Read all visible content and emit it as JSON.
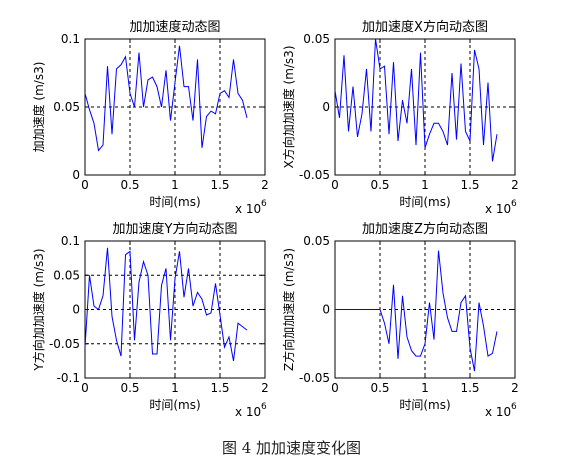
{
  "caption": "图 4  加加速度变化图",
  "chart_data": [
    {
      "type": "line",
      "title": "加加速度动态图",
      "xlabel": "时间(ms)",
      "ylabel": "加加速度 (m/s3)",
      "x_multiplier": "x 10",
      "x_multiplier_exp": "6",
      "xlim": [
        0,
        2
      ],
      "ylim": [
        0,
        0.1
      ],
      "xticks": [
        "0",
        "0.5",
        "1",
        "1.5",
        "2"
      ],
      "yticks": [
        "0",
        "0.05",
        "0.1"
      ],
      "ytick_values": [
        0,
        0.05,
        0.1
      ],
      "ref_x": [
        0.5,
        1,
        1.5
      ],
      "ref_y": [
        0.05
      ],
      "color": "#0000ff",
      "series": [
        {
          "x": [
            0.0,
            0.05,
            0.1,
            0.15,
            0.2,
            0.25,
            0.3,
            0.35,
            0.4,
            0.45,
            0.5,
            0.55,
            0.6,
            0.65,
            0.7,
            0.75,
            0.8,
            0.85,
            0.9,
            0.95,
            1.0,
            1.05,
            1.1,
            1.15,
            1.2,
            1.25,
            1.3,
            1.35,
            1.4,
            1.45,
            1.5,
            1.55,
            1.6,
            1.65,
            1.7,
            1.75,
            1.8
          ],
          "y": [
            0.06,
            0.048,
            0.038,
            0.018,
            0.022,
            0.08,
            0.03,
            0.078,
            0.081,
            0.087,
            0.06,
            0.05,
            0.09,
            0.05,
            0.07,
            0.072,
            0.065,
            0.05,
            0.077,
            0.04,
            0.068,
            0.095,
            0.065,
            0.065,
            0.04,
            0.085,
            0.02,
            0.043,
            0.047,
            0.045,
            0.06,
            0.062,
            0.057,
            0.085,
            0.06,
            0.055,
            0.042
          ]
        }
      ]
    },
    {
      "type": "line",
      "title": "加加速度X方向动态图",
      "xlabel": "时间(ms)",
      "ylabel": "X方向加加速度 (m/s3)",
      "x_multiplier": "x 10",
      "x_multiplier_exp": "6",
      "xlim": [
        0,
        2
      ],
      "ylim": [
        -0.05,
        0.05
      ],
      "xticks": [
        "0",
        "0.5",
        "1",
        "1.5",
        "2"
      ],
      "yticks": [
        "-0.05",
        "0",
        "0.05"
      ],
      "ytick_values": [
        -0.05,
        0,
        0.05
      ],
      "ref_x": [
        0.5,
        1,
        1.5
      ],
      "ref_y": [
        0
      ],
      "color": "#0000ff",
      "series": [
        {
          "x": [
            0.0,
            0.05,
            0.1,
            0.15,
            0.2,
            0.25,
            0.3,
            0.35,
            0.4,
            0.45,
            0.5,
            0.55,
            0.6,
            0.65,
            0.7,
            0.75,
            0.8,
            0.85,
            0.9,
            0.95,
            1.0,
            1.05,
            1.1,
            1.15,
            1.2,
            1.25,
            1.3,
            1.35,
            1.4,
            1.45,
            1.5,
            1.55,
            1.6,
            1.65,
            1.7,
            1.75,
            1.8
          ],
          "y": [
            0.012,
            -0.008,
            0.038,
            -0.018,
            0.015,
            -0.022,
            -0.005,
            0.028,
            -0.018,
            0.05,
            0.028,
            0.03,
            -0.02,
            0.033,
            -0.025,
            0.005,
            -0.012,
            0.028,
            -0.028,
            0.04,
            -0.03,
            -0.02,
            -0.012,
            -0.012,
            -0.018,
            -0.028,
            0.025,
            -0.024,
            0.032,
            -0.018,
            -0.025,
            0.042,
            0.028,
            -0.028,
            0.018,
            -0.04,
            -0.02
          ]
        }
      ]
    },
    {
      "type": "line",
      "title": "加加速度Y方向动态图",
      "xlabel": "时间(ms)",
      "ylabel": "Y方向加加速度 (m/s3)",
      "x_multiplier": "x 10",
      "x_multiplier_exp": "6",
      "xlim": [
        0,
        2
      ],
      "ylim": [
        -0.1,
        0.1
      ],
      "xticks": [
        "0",
        "0.5",
        "1",
        "1.5",
        "2"
      ],
      "yticks": [
        "-0.1",
        "-0.05",
        "0",
        "0.05",
        "0.1"
      ],
      "ytick_values": [
        -0.1,
        -0.05,
        0,
        0.05,
        0.1
      ],
      "ref_x": [
        0.5,
        1,
        1.5
      ],
      "ref_y": [
        -0.05,
        0,
        0.05
      ],
      "color": "#0000ff",
      "series": [
        {
          "x": [
            0.0,
            0.05,
            0.1,
            0.15,
            0.2,
            0.25,
            0.3,
            0.35,
            0.4,
            0.45,
            0.5,
            0.55,
            0.6,
            0.65,
            0.7,
            0.75,
            0.8,
            0.85,
            0.9,
            0.95,
            1.0,
            1.05,
            1.1,
            1.15,
            1.2,
            1.25,
            1.3,
            1.35,
            1.4,
            1.45,
            1.5,
            1.55,
            1.6,
            1.65,
            1.7,
            1.75,
            1.8
          ],
          "y": [
            -0.055,
            0.05,
            0.005,
            0.0,
            0.02,
            0.09,
            -0.01,
            -0.045,
            -0.068,
            0.08,
            0.085,
            -0.045,
            0.04,
            0.07,
            0.05,
            -0.065,
            -0.065,
            0.035,
            0.06,
            -0.045,
            0.045,
            0.085,
            0.018,
            0.06,
            0.005,
            0.025,
            0.015,
            -0.008,
            -0.005,
            0.038,
            -0.008,
            -0.055,
            -0.04,
            -0.075,
            -0.02,
            -0.025,
            -0.03
          ]
        }
      ]
    },
    {
      "type": "line",
      "title": "加加速度Z方向动态图",
      "xlabel": "时间(ms)",
      "ylabel": "Z方向加加速度 (m/s3)",
      "x_multiplier": "x 10",
      "x_multiplier_exp": "6",
      "xlim": [
        0,
        2
      ],
      "ylim": [
        -0.05,
        0.05
      ],
      "xticks": [
        "0",
        "0.5",
        "1",
        "1.5",
        "2"
      ],
      "yticks": [
        "-0.05",
        "0",
        "0.05"
      ],
      "ytick_values": [
        -0.05,
        0,
        0.05
      ],
      "ref_x": [
        0.5,
        1,
        1.5
      ],
      "ref_y": [
        0
      ],
      "color": "#0000ff",
      "series": [
        {
          "x": [
            0.0,
            0.05,
            0.1,
            0.15,
            0.2,
            0.25,
            0.3,
            0.35,
            0.4,
            0.45,
            0.5,
            0.55,
            0.6,
            0.65,
            0.7,
            0.75,
            0.8,
            0.85,
            0.9,
            0.95,
            1.0,
            1.05,
            1.1,
            1.15,
            1.2,
            1.25,
            1.3,
            1.35,
            1.4,
            1.45,
            1.5,
            1.55,
            1.6,
            1.65,
            1.7,
            1.75,
            1.8
          ],
          "y": [
            0,
            0,
            0,
            0,
            0,
            0,
            0,
            0,
            0,
            0,
            0,
            -0.01,
            -0.025,
            0.018,
            -0.036,
            0.01,
            -0.02,
            -0.03,
            -0.034,
            -0.034,
            -0.025,
            0.005,
            -0.022,
            0.043,
            0.012,
            -0.006,
            -0.016,
            -0.016,
            0.005,
            0.01,
            -0.028,
            -0.045,
            0.005,
            -0.012,
            -0.034,
            -0.032,
            -0.016
          ]
        }
      ]
    }
  ]
}
